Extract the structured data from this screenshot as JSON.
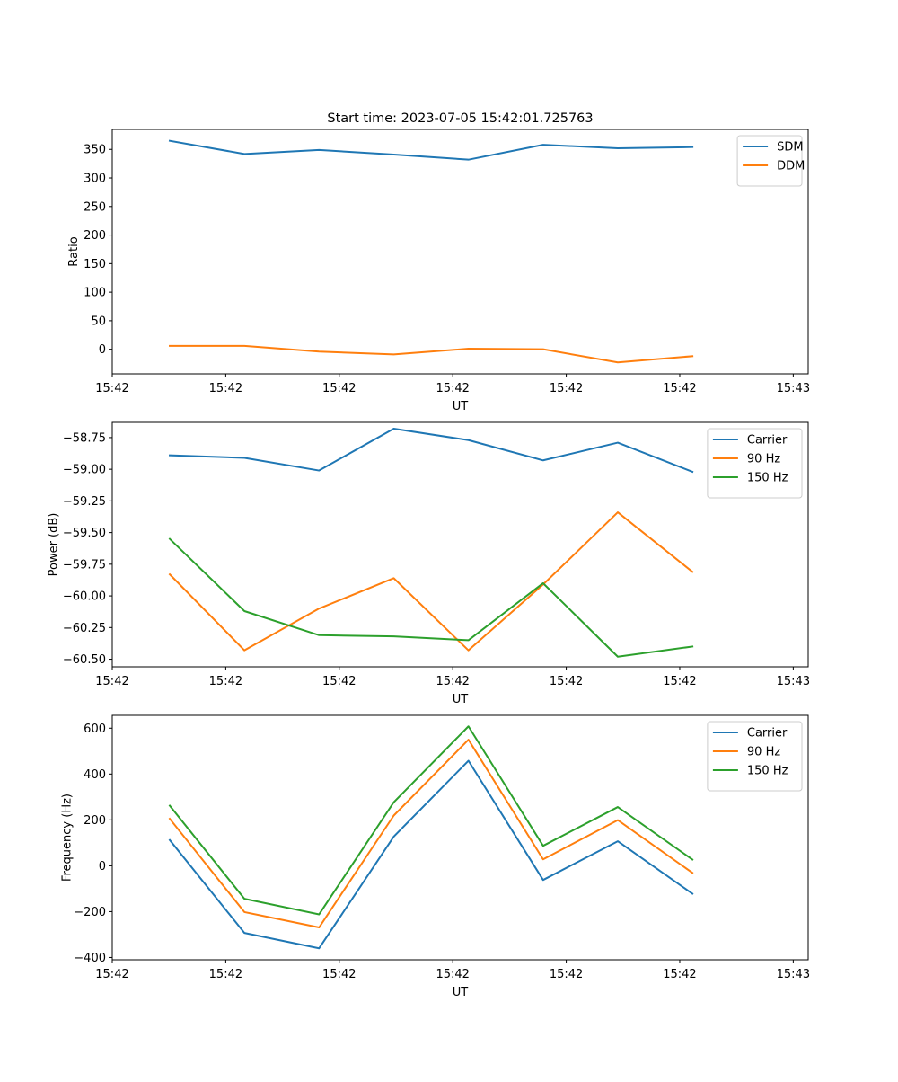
{
  "figure_title": "Start time: 2023-07-05 15:42:01.725763",
  "colors": {
    "blue": "#1f77b4",
    "orange": "#ff7f0e",
    "green": "#2ca02c",
    "axis": "#000000",
    "legend_border": "#cccccc"
  },
  "chart_data": [
    {
      "type": "line",
      "title": "Start time: 2023-07-05 15:42:01.725763",
      "xlabel": "UT",
      "ylabel": "Ratio",
      "xlim": [
        -0.77,
        8.55
      ],
      "ylim": [
        -43,
        385
      ],
      "x_ticks": [
        -0.77,
        0.75,
        2.27,
        3.79,
        5.31,
        6.83,
        8.35
      ],
      "x_tick_labels": [
        "15:42",
        "15:42",
        "15:42",
        "15:42",
        "15:42",
        "15:42",
        "15:43"
      ],
      "y_ticks": [
        0,
        50,
        100,
        150,
        200,
        250,
        300,
        350
      ],
      "y_tick_labels": [
        "0",
        "50",
        "100",
        "150",
        "200",
        "250",
        "300",
        "350"
      ],
      "legend_location": "upper right",
      "x": [
        0,
        1,
        2,
        3,
        4,
        5,
        6,
        7
      ],
      "series": [
        {
          "name": "SDM",
          "color": "#1f77b4",
          "values": [
            365,
            342,
            349,
            341,
            332,
            358,
            352,
            354
          ]
        },
        {
          "name": "DDM",
          "color": "#ff7f0e",
          "values": [
            6,
            6,
            -4,
            -9,
            1,
            0,
            -23,
            -12
          ]
        }
      ]
    },
    {
      "type": "line",
      "xlabel": "UT",
      "ylabel": "Power (dB)",
      "xlim": [
        -0.77,
        8.55
      ],
      "ylim": [
        -60.56,
        -58.63
      ],
      "x_ticks": [
        -0.77,
        0.75,
        2.27,
        3.79,
        5.31,
        6.83,
        8.35
      ],
      "x_tick_labels": [
        "15:42",
        "15:42",
        "15:42",
        "15:42",
        "15:42",
        "15:42",
        "15:43"
      ],
      "y_ticks": [
        -60.5,
        -60.25,
        -60.0,
        -59.75,
        -59.5,
        -59.25,
        -59.0,
        -58.75
      ],
      "y_tick_labels": [
        "−60.50",
        "−60.25",
        "−60.00",
        "−59.75",
        "−59.50",
        "−59.25",
        "−59.00",
        "−58.75"
      ],
      "legend_location": "upper right",
      "x": [
        0,
        1,
        2,
        3,
        4,
        5,
        6,
        7
      ],
      "series": [
        {
          "name": "Carrier",
          "color": "#1f77b4",
          "values": [
            -58.89,
            -58.91,
            -59.01,
            -58.68,
            -58.77,
            -58.93,
            -58.79,
            -59.02
          ]
        },
        {
          "name": "90 Hz",
          "color": "#ff7f0e",
          "values": [
            -59.83,
            -60.43,
            -60.1,
            -59.86,
            -60.43,
            -59.91,
            -59.34,
            -59.81
          ]
        },
        {
          "name": "150 Hz",
          "color": "#2ca02c",
          "values": [
            -59.55,
            -60.12,
            -60.31,
            -60.32,
            -60.35,
            -59.9,
            -60.48,
            -60.4
          ]
        }
      ]
    },
    {
      "type": "line",
      "xlabel": "UT",
      "ylabel": "Frequency (Hz)",
      "xlim": [
        -0.77,
        8.55
      ],
      "ylim": [
        -410,
        656
      ],
      "x_ticks": [
        -0.77,
        0.75,
        2.27,
        3.79,
        5.31,
        6.83,
        8.35
      ],
      "x_tick_labels": [
        "15:42",
        "15:42",
        "15:42",
        "15:42",
        "15:42",
        "15:42",
        "15:43"
      ],
      "y_ticks": [
        -400,
        -200,
        0,
        200,
        400,
        600
      ],
      "y_tick_labels": [
        "−400",
        "−200",
        "0",
        "200",
        "400",
        "600"
      ],
      "legend_location": "upper right",
      "x": [
        0,
        1,
        2,
        3,
        4,
        5,
        6,
        7
      ],
      "series": [
        {
          "name": "Carrier",
          "color": "#1f77b4",
          "values": [
            112,
            -293,
            -360,
            127,
            458,
            -62,
            107,
            -122
          ]
        },
        {
          "name": "90 Hz",
          "color": "#ff7f0e",
          "values": [
            205,
            -202,
            -269,
            219,
            550,
            28,
            199,
            -31
          ]
        },
        {
          "name": "150 Hz",
          "color": "#2ca02c",
          "values": [
            262,
            -144,
            -212,
            277,
            608,
            87,
            256,
            27
          ]
        }
      ]
    }
  ]
}
